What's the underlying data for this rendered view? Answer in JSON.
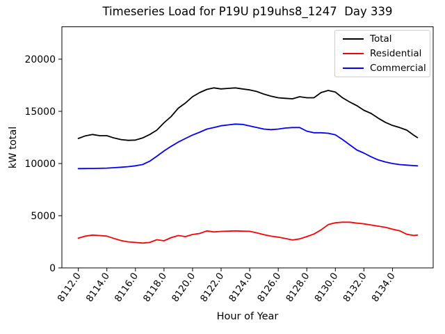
{
  "title": "Timeseries Load for P19U p19uhs8_1247  Day 339",
  "axes": {
    "xlabel": "Hour of Year",
    "ylabel": "kW total",
    "x_ticks": [
      "8112.0",
      "8114.0",
      "8116.0",
      "8118.0",
      "8120.0",
      "8122.0",
      "8124.0",
      "8126.0",
      "8128.0",
      "8130.0",
      "8132.0",
      "8134.0"
    ],
    "y_ticks": [
      "0",
      "5000",
      "10000",
      "15000",
      "20000"
    ]
  },
  "legend": {
    "position": "upper right",
    "entries": [
      "Total",
      "Residential",
      "Commercial"
    ]
  },
  "chart_data": {
    "type": "line",
    "title": "Timeseries Load for P19U p19uhs8_1247  Day 339",
    "xlabel": "Hour of Year",
    "ylabel": "kW total",
    "xlim": [
      8110.85,
      8136.85
    ],
    "ylim": [
      0,
      23100
    ],
    "grid": false,
    "legend_position": "upper right",
    "x": [
      8112,
      8112.5,
      8113,
      8113.5,
      8114,
      8114.5,
      8115,
      8115.5,
      8116,
      8116.5,
      8117,
      8117.5,
      8118,
      8118.5,
      8119,
      8119.5,
      8120,
      8120.5,
      8121,
      8121.5,
      8122,
      8122.5,
      8123,
      8123.5,
      8124,
      8124.5,
      8125,
      8125.5,
      8126,
      8126.5,
      8127,
      8127.5,
      8128,
      8128.5,
      8129,
      8129.5,
      8130,
      8130.5,
      8131,
      8131.5,
      8132,
      8132.5,
      8133,
      8133.5,
      8134,
      8134.5,
      8135,
      8135.5,
      8135.75
    ],
    "series": [
      {
        "name": "Total",
        "color": "#000000",
        "values": [
          12400,
          12650,
          12780,
          12670,
          12670,
          12450,
          12290,
          12220,
          12250,
          12450,
          12780,
          13200,
          13900,
          14500,
          15300,
          15800,
          16400,
          16800,
          17100,
          17250,
          17150,
          17200,
          17250,
          17150,
          17050,
          16900,
          16650,
          16450,
          16300,
          16250,
          16200,
          16400,
          16300,
          16300,
          16800,
          17000,
          16850,
          16300,
          15900,
          15550,
          15100,
          14800,
          14350,
          13950,
          13650,
          13450,
          13200,
          12700,
          12480
        ]
      },
      {
        "name": "Residential",
        "color": "#ff0000",
        "values": [
          2850,
          3050,
          3150,
          3100,
          3050,
          2820,
          2620,
          2490,
          2440,
          2380,
          2440,
          2700,
          2600,
          2900,
          3100,
          3000,
          3200,
          3300,
          3550,
          3450,
          3500,
          3520,
          3550,
          3520,
          3510,
          3360,
          3180,
          3040,
          2950,
          2820,
          2670,
          2780,
          3000,
          3250,
          3650,
          4150,
          4330,
          4380,
          4380,
          4290,
          4220,
          4110,
          4000,
          3890,
          3710,
          3560,
          3220,
          3110,
          3150
        ]
      },
      {
        "name": "Commercial",
        "color": "#0000ff",
        "values": [
          9513,
          9520,
          9530,
          9540,
          9560,
          9600,
          9650,
          9700,
          9780,
          9900,
          10220,
          10700,
          11200,
          11650,
          12050,
          12400,
          12730,
          13000,
          13300,
          13450,
          13620,
          13700,
          13780,
          13750,
          13600,
          13450,
          13300,
          13250,
          13300,
          13400,
          13450,
          13450,
          13100,
          12950,
          12950,
          12900,
          12750,
          12300,
          11800,
          11300,
          11000,
          10650,
          10350,
          10150,
          10000,
          9900,
          9850,
          9800,
          9780
        ]
      }
    ]
  }
}
